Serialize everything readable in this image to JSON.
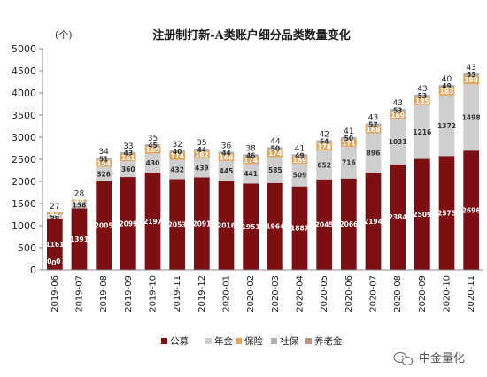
{
  "chart_data": {
    "type": "bar",
    "stacked": true,
    "title": "注册制打新-A类账户细分品类数量变化",
    "ylabel": "(个)",
    "ylim": [
      0,
      5000
    ],
    "yticks": [
      0,
      500,
      1000,
      1500,
      2000,
      2500,
      3000,
      3500,
      4000,
      4500,
      5000
    ],
    "grid": false,
    "legend_position": "bottom",
    "categories": [
      "2019-06",
      "2019-07",
      "2019-08",
      "2019-09",
      "2019-10",
      "2019-11",
      "2019-12",
      "2020-01",
      "2020-02",
      "2020-03",
      "2020-04",
      "2020-05",
      "2020-06",
      "2020-07",
      "2020-08",
      "2020-09",
      "2020-10",
      "2020-11"
    ],
    "series": [
      {
        "name": "公募",
        "color": "#7b0f12",
        "label_color": "#ffffff",
        "values": [
          1161,
          1391,
          2005,
          2099,
          2197,
          2053,
          2091,
          2016,
          1951,
          1964,
          1887,
          2045,
          2066,
          2194,
          2384,
          2509,
          2575,
          2696
        ]
      },
      {
        "name": "年金",
        "color": "#cfcfcf",
        "label_color": "#333333",
        "values": [
          96,
          158,
          326,
          360,
          430,
          432,
          439,
          445,
          441,
          585,
          509,
          652,
          716,
          896,
          1031,
          1216,
          1372,
          1498
        ]
      },
      {
        "name": "保险",
        "color": "#e3a55e",
        "label_color": "#ffffff",
        "values": [
          42,
          40,
          154,
          161,
          169,
          174,
          162,
          168,
          174,
          174,
          169,
          178,
          171,
          168,
          169,
          185,
          183,
          198
        ]
      },
      {
        "name": "社保",
        "color": "#b1b1b1",
        "label_color": "#333333",
        "values": [
          0,
          0,
          51,
          43,
          45,
          40,
          44,
          44,
          46,
          50,
          49,
          54,
          50,
          52,
          53,
          53,
          49,
          53
        ]
      },
      {
        "name": "养老金",
        "color": "#c1927c",
        "label_color": "#333333",
        "values": [
          0,
          0,
          0,
          0,
          0,
          0,
          0,
          0,
          0,
          0,
          0,
          0,
          0,
          0,
          0,
          0,
          0,
          0
        ]
      }
    ],
    "top_values": [
      27,
      28,
      34,
      33,
      35,
      32,
      35,
      36,
      38,
      44,
      41,
      42,
      41,
      43,
      43,
      43,
      40,
      43
    ],
    "extra_labels": [
      "0",
      "0",
      "0"
    ]
  },
  "watermark": "中金量化"
}
